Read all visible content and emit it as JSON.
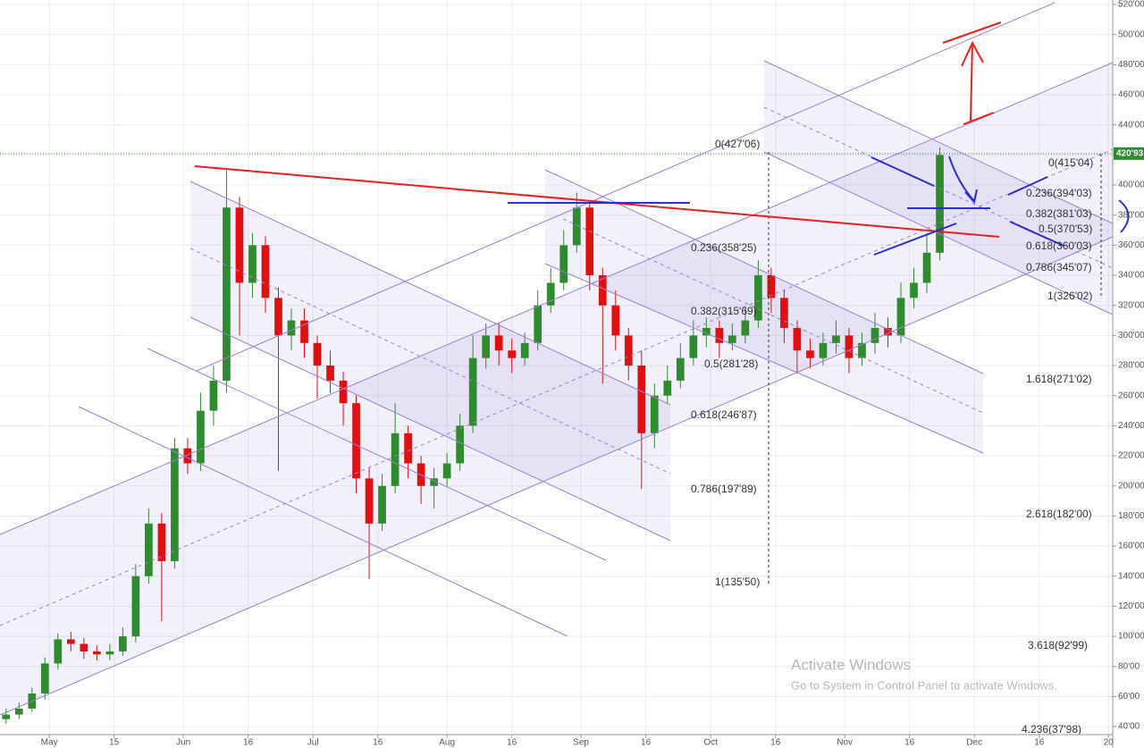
{
  "chart_data": {
    "type": "candlestick",
    "x": [
      -10,
      -7,
      -4,
      -1,
      2,
      5,
      8,
      11,
      14,
      17,
      20,
      23,
      26,
      29,
      32,
      35,
      38,
      41,
      44,
      47,
      50,
      53,
      56,
      59,
      62,
      65,
      68,
      71,
      74,
      77,
      80,
      83,
      86,
      89,
      92,
      95,
      98,
      101,
      104,
      107,
      110,
      113,
      116,
      119,
      122,
      125,
      128,
      131,
      134,
      137,
      140,
      143,
      146,
      149,
      152,
      155,
      158,
      161,
      164,
      167,
      170,
      173,
      176,
      179,
      182,
      185,
      188,
      191,
      194,
      197,
      200,
      203,
      206
    ],
    "open": [
      45,
      48,
      52,
      62,
      82,
      98,
      95,
      90,
      88,
      90,
      100,
      140,
      175,
      150,
      225,
      215,
      250,
      270,
      385,
      335,
      360,
      325,
      300,
      310,
      295,
      280,
      270,
      255,
      205,
      175,
      200,
      235,
      215,
      200,
      205,
      215,
      240,
      285,
      300,
      290,
      285,
      295,
      320,
      335,
      360,
      385,
      340,
      320,
      300,
      280,
      235,
      260,
      270,
      285,
      300,
      305,
      295,
      300,
      310,
      340,
      325,
      305,
      290,
      285,
      295,
      300,
      285,
      295,
      305,
      300,
      325,
      335,
      355
    ],
    "high": [
      52,
      56,
      66,
      86,
      102,
      103,
      99,
      94,
      95,
      106,
      148,
      185,
      182,
      232,
      232,
      262,
      280,
      410,
      392,
      368,
      366,
      332,
      318,
      318,
      300,
      290,
      276,
      260,
      212,
      208,
      255,
      240,
      220,
      212,
      222,
      248,
      300,
      308,
      308,
      298,
      302,
      330,
      345,
      370,
      395,
      390,
      345,
      330,
      305,
      290,
      268,
      280,
      295,
      310,
      312,
      310,
      308,
      318,
      350,
      345,
      330,
      310,
      298,
      302,
      310,
      305,
      302,
      315,
      312,
      335,
      345,
      368,
      425
    ],
    "low": [
      42,
      45,
      50,
      58,
      78,
      90,
      85,
      84,
      84,
      87,
      96,
      135,
      110,
      145,
      208,
      210,
      240,
      262,
      300,
      325,
      315,
      210,
      290,
      285,
      258,
      262,
      240,
      195,
      138,
      170,
      195,
      205,
      188,
      185,
      200,
      210,
      235,
      278,
      280,
      275,
      280,
      290,
      315,
      330,
      355,
      330,
      268,
      290,
      270,
      198,
      225,
      255,
      265,
      280,
      292,
      285,
      290,
      295,
      305,
      315,
      295,
      275,
      278,
      280,
      288,
      275,
      280,
      288,
      292,
      295,
      318,
      328,
      350
    ],
    "close": [
      48,
      52,
      62,
      82,
      98,
      95,
      90,
      88,
      90,
      100,
      140,
      175,
      150,
      225,
      215,
      250,
      270,
      385,
      335,
      360,
      325,
      300,
      310,
      295,
      280,
      270,
      255,
      205,
      175,
      200,
      235,
      215,
      200,
      205,
      215,
      240,
      285,
      300,
      290,
      285,
      295,
      320,
      335,
      360,
      385,
      340,
      320,
      300,
      280,
      235,
      260,
      270,
      285,
      300,
      305,
      295,
      300,
      310,
      340,
      325,
      305,
      290,
      285,
      295,
      300,
      285,
      295,
      305,
      300,
      325,
      335,
      355,
      420
    ],
    "up_color": "#2e8b2e",
    "down_color": "#e01010",
    "xlim": [
      -11.4,
      246
    ],
    "ylim": [
      34.7,
      523
    ],
    "xticks": [
      {
        "value": 0,
        "label": "May"
      },
      15,
      {
        "value": 31,
        "label": "Jun"
      },
      {
        "value": 46,
        "label": "16"
      },
      {
        "value": 61,
        "label": "Jul"
      },
      {
        "value": 76,
        "label": "16"
      },
      {
        "value": 92,
        "label": "Aug"
      },
      {
        "value": 107,
        "label": "16"
      },
      {
        "value": 123,
        "label": "Sep"
      },
      {
        "value": 138,
        "label": "16"
      },
      {
        "value": 153,
        "label": "Oct"
      },
      {
        "value": 168,
        "label": "16"
      },
      {
        "value": 184,
        "label": "Nov"
      },
      {
        "value": 199,
        "label": "16"
      },
      {
        "value": 214,
        "label": "Dec"
      },
      {
        "value": 229,
        "label": "16"
      },
      {
        "value": 245,
        "label": "20"
      }
    ],
    "yticks": [
      {
        "value": 40,
        "label": "40'00"
      },
      {
        "value": 60,
        "label": "60'00"
      },
      {
        "value": 80,
        "label": "80'00"
      },
      {
        "value": 100,
        "label": "100'00"
      },
      {
        "value": 120,
        "label": "120'00"
      },
      {
        "value": 140,
        "label": "140'00"
      },
      {
        "value": 160,
        "label": "160'00"
      },
      {
        "value": 180,
        "label": "180'00"
      },
      {
        "value": 200,
        "label": "200'00"
      },
      {
        "value": 220,
        "label": "220'00"
      },
      {
        "value": 240,
        "label": "240'00"
      },
      {
        "value": 260,
        "label": "260'00"
      },
      {
        "value": 280,
        "label": "280'00"
      },
      {
        "value": 300,
        "label": "300'00"
      },
      {
        "value": 320,
        "label": "320'00"
      },
      {
        "value": 340,
        "label": "340'00"
      },
      {
        "value": 360,
        "label": "360'00"
      },
      {
        "value": 380,
        "label": "380'00"
      },
      {
        "value": 400,
        "label": "400'00"
      },
      {
        "value": 420,
        "label": "420'00"
      },
      {
        "value": 440,
        "label": "440'00"
      },
      {
        "value": 460,
        "label": "460'00"
      },
      {
        "value": 480,
        "label": "480'00"
      },
      {
        "value": 500,
        "label": "500'00"
      },
      {
        "value": 520,
        "label": "520'00"
      }
    ],
    "grid": true,
    "last_price": {
      "value": 420.93,
      "label": "420'93",
      "color": "#2e8b2e"
    },
    "fib_labels": [
      "0(427'06)",
      "0.236(358'25)",
      "0.382(315'69)",
      "0.5(281'28)",
      "0.618(246'87)",
      "0.786(197'89)",
      "1(135'50)",
      "0(415'04)",
      "0.236(394'03)",
      "0.382(381'03)",
      "0.5(370'53)",
      "0.618(360'03)",
      "0.786(345'07)",
      "1(326'02)",
      "1.618(271'02)",
      "2.618(182'00)",
      "3.618(92'99)",
      "4.236(37'98)"
    ],
    "watermark": {
      "title": "Activate Windows",
      "text": "Go to System in Control Panel to activate Windows."
    }
  }
}
